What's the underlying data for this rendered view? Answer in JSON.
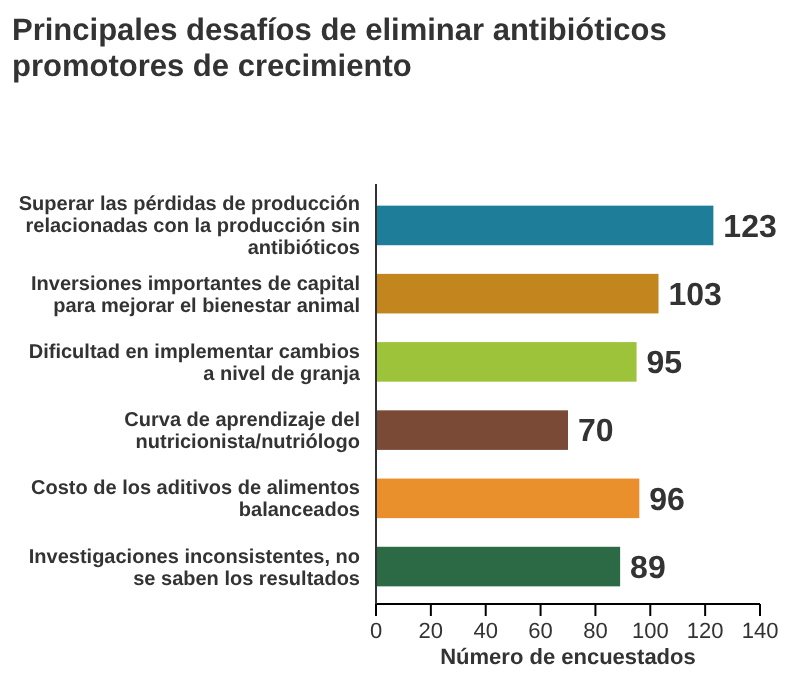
{
  "chart_data": {
    "type": "bar",
    "orientation": "horizontal",
    "title": "Principales desafíos de eliminar antibióticos promotores de crecimiento",
    "xlabel": "Número de encuestados",
    "categories": [
      "Superar las pérdidas de producción relacionadas con la producción sin antibióticos",
      "Inversiones importantes de capital para mejorar el bienestar animal",
      "Dificultad en implementar cambios a nivel de granja",
      "Curva de aprendizaje del nutricionista/nutriólogo",
      "Costo de los aditivos de alimentos balanceados",
      "Investigaciones inconsistentes, no se saben los resultados"
    ],
    "values": [
      123,
      103,
      95,
      70,
      96,
      89
    ],
    "colors": [
      "#1e7d98",
      "#c3861f",
      "#9dc33b",
      "#7b4a36",
      "#e98f2b",
      "#2b6a44"
    ],
    "xlim": [
      0,
      140
    ],
    "xticks": [
      0,
      20,
      40,
      60,
      80,
      100,
      120,
      140
    ],
    "data_labels": true,
    "grid": false
  }
}
